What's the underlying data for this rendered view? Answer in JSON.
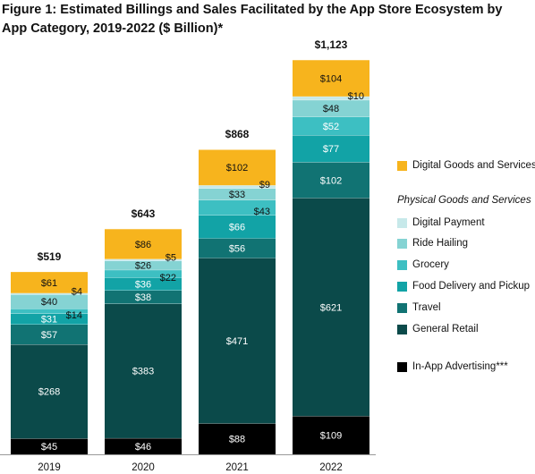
{
  "title": "Figure 1: Estimated Billings and Sales Facilitated by the App Store Ecosystem by App Category, 2019-2022 ($ Billion)*",
  "legend": {
    "digital_label": "Digital Goods and Services**",
    "physical_heading": "Physical Goods and Services",
    "physical_items": [
      "Digital Payment",
      "Ride Hailing",
      "Grocery",
      "Food Delivery and Pickup",
      "Travel",
      "General Retail"
    ],
    "ads_label": "In-App Advertising***"
  },
  "chart_data": {
    "type": "bar",
    "stacked": true,
    "title": "Figure 1: Estimated Billings and Sales Facilitated by the App Store Ecosystem by App Category, 2019-2022 ($ Billion)*",
    "categories": [
      "2019",
      "2020",
      "2021",
      "2022"
    ],
    "totals": [
      519,
      643,
      868,
      1123
    ],
    "total_labels": [
      "$519",
      "$643",
      "$868",
      "$1,123"
    ],
    "value_prefix": "$",
    "ylim": [
      0,
      1123
    ],
    "grid": false,
    "legend_position": "right",
    "series": [
      {
        "name": "In-App Advertising***",
        "color": "#000000",
        "values": [
          45,
          46,
          88,
          109
        ]
      },
      {
        "name": "General Retail",
        "color": "#0b4a4a",
        "values": [
          268,
          383,
          471,
          621
        ]
      },
      {
        "name": "Travel",
        "color": "#117373",
        "values": [
          57,
          38,
          56,
          102
        ]
      },
      {
        "name": "Food Delivery and Pickup",
        "color": "#12a3a6",
        "values": [
          31,
          36,
          66,
          77
        ]
      },
      {
        "name": "Grocery",
        "color": "#3dbfc2",
        "values": [
          14,
          22,
          43,
          52
        ]
      },
      {
        "name": "Ride Hailing",
        "color": "#85d3d3",
        "values": [
          40,
          26,
          33,
          48
        ]
      },
      {
        "name": "Digital Payment",
        "color": "#c7e9ea",
        "values": [
          4,
          5,
          9,
          10
        ]
      },
      {
        "name": "Digital Goods and Services**",
        "color": "#f7b41d",
        "values": [
          61,
          86,
          102,
          104
        ]
      }
    ]
  }
}
